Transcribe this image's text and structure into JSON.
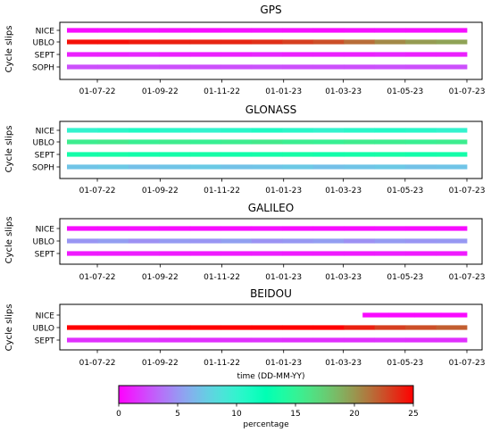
{
  "chart_data": [
    {
      "type": "heatmap",
      "title": "GPS",
      "ylabel": "Cycle slips",
      "xlabel": "",
      "x_ticks": [
        "01-07-22",
        "01-09-22",
        "01-11-22",
        "01-01-23",
        "01-03-23",
        "01-05-23",
        "01-07-23"
      ],
      "xlim": [
        "2022-06-01",
        "2023-07-01"
      ],
      "series": [
        {
          "name": "NICE",
          "start": "2022-06-01",
          "end": "2023-07-01",
          "levels": [
            0.4,
            0.5,
            0.6,
            0.5,
            0.4,
            0.5,
            0.6,
            0.5,
            0.4,
            0.5,
            0.6,
            0.5,
            0.5
          ]
        },
        {
          "name": "UBLO",
          "start": "2022-06-01",
          "end": "2023-07-01",
          "levels": [
            24.5,
            24.5,
            24.2,
            24,
            23.8,
            23.8,
            23.5,
            23,
            22.5,
            21.5,
            20.5,
            19.8,
            19.5
          ]
        },
        {
          "name": "SEPT",
          "start": "2022-06-01",
          "end": "2023-07-01",
          "levels": [
            1,
            1,
            1.2,
            1,
            1,
            1,
            1.2,
            1,
            1,
            1,
            1.2,
            1,
            1
          ]
        },
        {
          "name": "SOPH",
          "start": "2022-06-01",
          "end": "2023-07-01",
          "levels": [
            2.5,
            2.5,
            2.6,
            2.5,
            2.5,
            2.5,
            2.6,
            2.5,
            2.5,
            2.5,
            2.6,
            2.5,
            2.5
          ]
        }
      ]
    },
    {
      "type": "heatmap",
      "title": "GLONASS",
      "ylabel": "Cycle slips",
      "xlabel": "",
      "x_ticks": [
        "01-07-22",
        "01-09-22",
        "01-11-22",
        "01-01-23",
        "01-03-23",
        "01-05-23",
        "01-07-23"
      ],
      "xlim": [
        "2022-06-01",
        "2023-07-01"
      ],
      "series": [
        {
          "name": "NICE",
          "start": "2022-06-01",
          "end": "2023-07-01",
          "levels": [
            10,
            10.5,
            11,
            10.5,
            10,
            10.5,
            11,
            10.5,
            10,
            10.5,
            10.8,
            10.5,
            10
          ]
        },
        {
          "name": "UBLO",
          "start": "2022-06-01",
          "end": "2023-07-01",
          "levels": [
            15.5,
            15.8,
            15.3,
            15.6,
            15.2,
            15.5,
            15.8,
            15.4,
            15.2,
            15.6,
            15.5,
            15.3,
            15.5
          ]
        },
        {
          "name": "SEPT",
          "start": "2022-06-01",
          "end": "2023-07-01",
          "levels": [
            13.5,
            13.6,
            13.4,
            13.5,
            13.6,
            13.4,
            13.5,
            13.6,
            13.4,
            13.5,
            13.6,
            13.4,
            13.5
          ]
        },
        {
          "name": "SOPH",
          "start": "2022-06-01",
          "end": "2023-07-01",
          "levels": [
            7,
            7.2,
            6.8,
            7,
            7.3,
            6.9,
            7,
            7.2,
            6.8,
            7,
            7.2,
            6.9,
            7
          ]
        }
      ]
    },
    {
      "type": "heatmap",
      "title": "GALILEO",
      "ylabel": "Cycle slips",
      "xlabel": "",
      "x_ticks": [
        "01-07-22",
        "01-09-22",
        "01-11-22",
        "01-01-23",
        "01-03-23",
        "01-05-23",
        "01-07-23"
      ],
      "xlim": [
        "2022-06-01",
        "2023-07-01"
      ],
      "series": [
        {
          "name": "NICE",
          "start": "2022-06-01",
          "end": "2023-07-01",
          "levels": [
            0.4,
            0.4,
            0.5,
            0.4,
            0.4,
            0.4,
            0.5,
            0.4,
            0.4,
            0.4,
            0.5,
            0.4,
            0.4
          ]
        },
        {
          "name": "UBLO",
          "start": "2022-06-01",
          "end": "2023-07-01",
          "levels": [
            5,
            5.3,
            4.8,
            5.2,
            5,
            5.4,
            4.9,
            5.1,
            5.3,
            4.8,
            5.2,
            5,
            5.1
          ]
        },
        {
          "name": "SEPT",
          "start": "2022-06-01",
          "end": "2023-07-01",
          "levels": [
            0.8,
            0.8,
            0.9,
            0.8,
            0.8,
            0.8,
            0.9,
            0.8,
            0.8,
            0.8,
            0.9,
            0.8,
            0.8
          ]
        }
      ]
    },
    {
      "type": "heatmap",
      "title": "BEIDOU",
      "ylabel": "Cycle slips",
      "xlabel": "time (DD-MM-YY)",
      "x_ticks": [
        "01-07-22",
        "01-09-22",
        "01-11-22",
        "01-01-23",
        "01-03-23",
        "01-05-23",
        "01-07-23"
      ],
      "xlim": [
        "2022-06-01",
        "2023-07-01"
      ],
      "series": [
        {
          "name": "NICE",
          "start": "2023-03-20",
          "end": "2023-07-01",
          "levels": [
            0.3,
            0.3,
            0.3,
            0.3
          ]
        },
        {
          "name": "UBLO",
          "start": "2022-06-01",
          "end": "2023-07-01",
          "levels": [
            25.5,
            25.5,
            25.5,
            25.5,
            25.5,
            25.5,
            25.5,
            25.5,
            25,
            24,
            23,
            22.5,
            22
          ]
        },
        {
          "name": "SEPT",
          "start": "2022-06-01",
          "end": "2023-07-01",
          "levels": [
            1.5,
            1.5,
            1.6,
            1.5,
            1.5,
            1.5,
            1.6,
            1.5,
            1.5,
            1.5,
            1.6,
            1.5,
            1.5
          ]
        }
      ]
    }
  ],
  "colorbar": {
    "label": "percentage",
    "min": 0,
    "max": 25,
    "ticks": [
      "0",
      "5",
      "10",
      "15",
      "20",
      "25"
    ],
    "colormap": "rainbow"
  }
}
